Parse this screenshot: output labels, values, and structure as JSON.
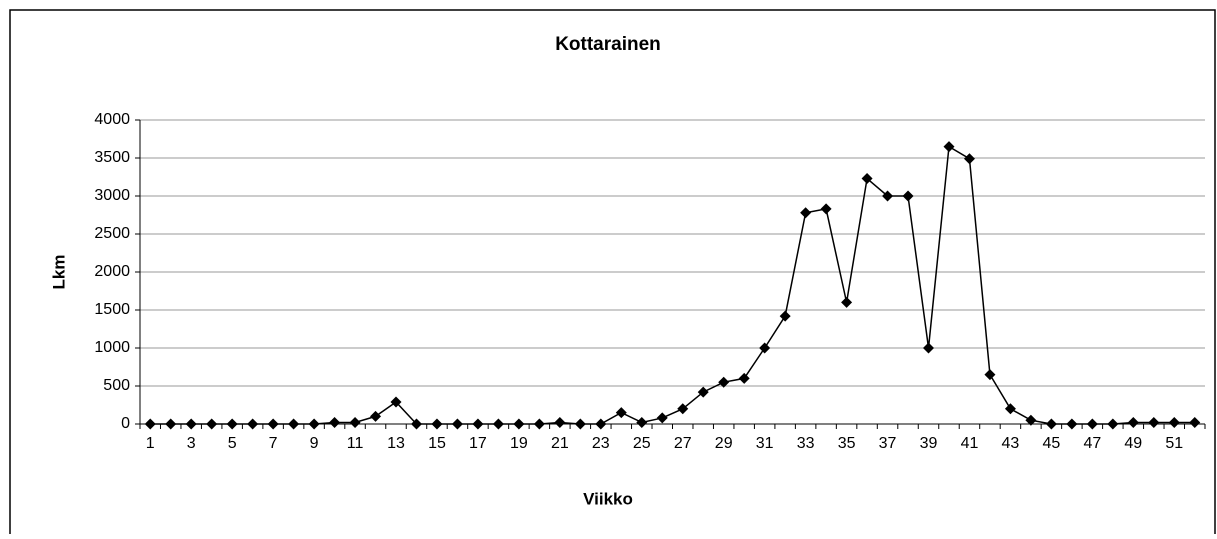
{
  "chart_data": {
    "type": "line",
    "title": "Kottarainen",
    "x_label": "Viikko",
    "y_label": "Lkm",
    "categories": [
      1,
      null,
      3,
      null,
      5,
      null,
      7,
      null,
      9,
      null,
      11,
      null,
      13,
      null,
      15,
      null,
      17,
      null,
      19,
      null,
      21,
      null,
      23,
      null,
      25,
      null,
      27,
      null,
      29,
      null,
      31,
      null,
      33,
      null,
      35,
      null,
      37,
      null,
      39,
      null,
      41,
      null,
      43,
      null,
      45,
      null,
      47,
      null,
      49,
      null,
      51,
      null
    ],
    "series": [
      {
        "name": "Kottarainen",
        "color": "#000000",
        "values": [
          0,
          0,
          0,
          0,
          0,
          0,
          0,
          0,
          0,
          20,
          20,
          100,
          290,
          0,
          0,
          0,
          0,
          0,
          0,
          0,
          20,
          0,
          0,
          150,
          20,
          80,
          200,
          420,
          550,
          600,
          1000,
          1420,
          2780,
          2830,
          1600,
          3230,
          3000,
          3000,
          1000,
          3650,
          3490,
          650,
          200,
          50,
          0,
          0,
          0,
          0,
          20,
          20,
          20,
          20
        ]
      }
    ],
    "ylim": [
      0,
      4000
    ],
    "yticks": [
      0,
      500,
      1000,
      1500,
      2000,
      2500,
      3000,
      3500,
      4000
    ],
    "grid": true
  }
}
